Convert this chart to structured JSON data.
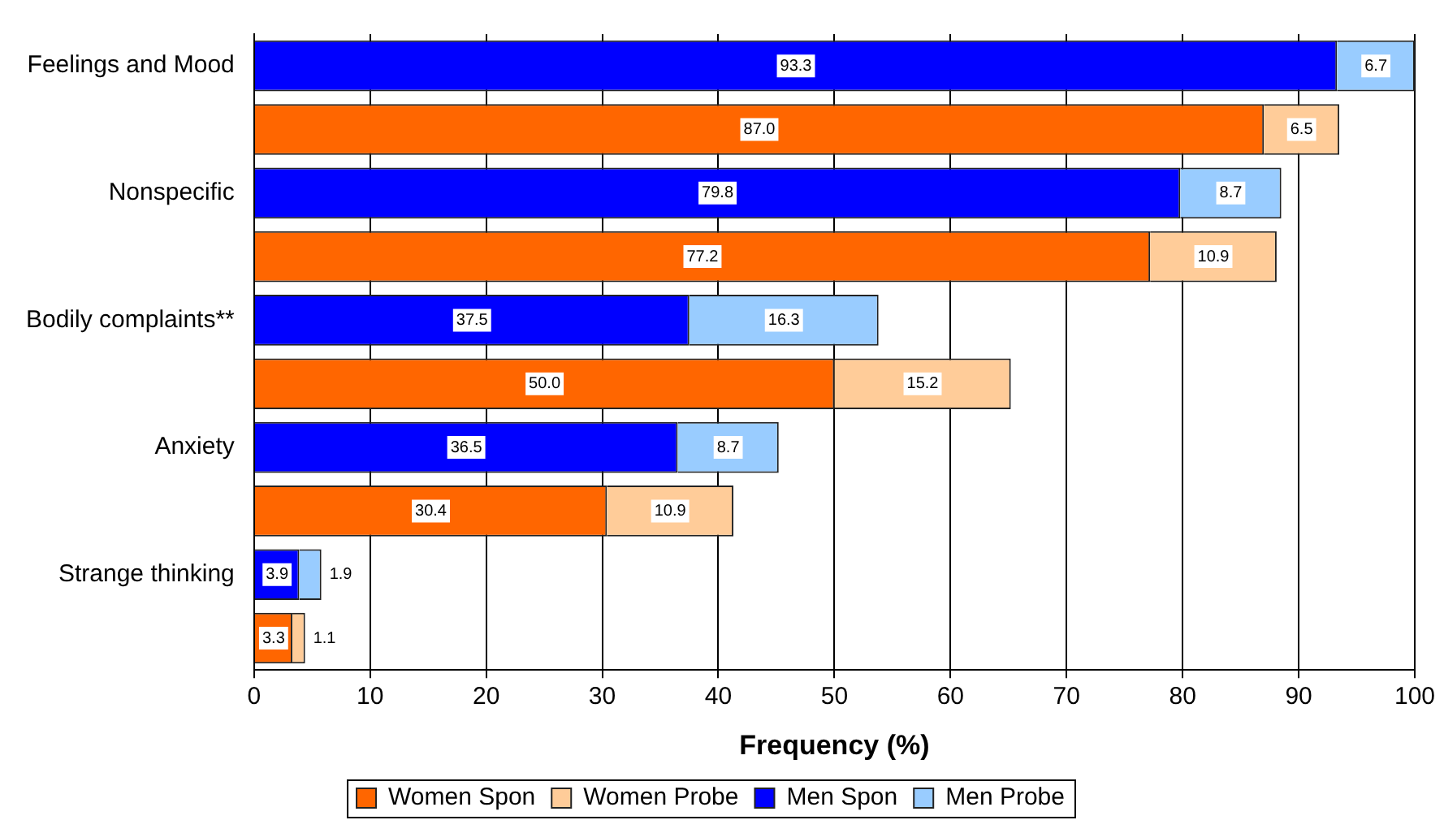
{
  "chart_data": {
    "type": "bar",
    "orientation": "horizontal",
    "stacked": true,
    "categories": [
      "Feelings and Mood",
      null,
      "Nonspecific",
      null,
      "Bodily complaints**",
      null,
      "Anxiety",
      null,
      "Strange thinking",
      null
    ],
    "series": [
      {
        "name": "Women Spon",
        "color": "#ff6600",
        "values": [
          null,
          87.0,
          null,
          77.2,
          null,
          50.0,
          null,
          30.4,
          null,
          3.3
        ],
        "value_labels": [
          null,
          "87.0",
          null,
          "77.2",
          null,
          "50.0",
          null,
          "30.4",
          null,
          "3.3"
        ]
      },
      {
        "name": "Women Probe",
        "color": "#ffcc99",
        "values": [
          null,
          6.5,
          null,
          10.9,
          null,
          15.2,
          null,
          10.9,
          null,
          1.1
        ],
        "value_labels": [
          null,
          "6.5",
          null,
          "10.9",
          null,
          "15.2",
          null,
          "10.9",
          null,
          "1.1"
        ]
      },
      {
        "name": "Men Spon",
        "color": "#0000ff",
        "values": [
          93.3,
          null,
          79.8,
          null,
          37.5,
          null,
          36.5,
          null,
          3.9,
          null
        ],
        "value_labels": [
          "93.3",
          null,
          "79.8",
          null,
          "37.5",
          null,
          "36.5",
          null,
          "3.9",
          null
        ]
      },
      {
        "name": "Men Probe",
        "color": "#99ccff",
        "values": [
          6.7,
          null,
          8.7,
          null,
          16.3,
          null,
          8.7,
          null,
          1.9,
          null
        ],
        "value_labels": [
          "6.7",
          null,
          "8.7",
          null,
          "16.3",
          null,
          "8.7",
          null,
          "1.9",
          null
        ]
      }
    ],
    "xlabel": "Frequency (%)",
    "xlim": [
      0,
      100
    ],
    "xticks": [
      0,
      10,
      20,
      30,
      40,
      50,
      60,
      70,
      80,
      90,
      100
    ],
    "grid": "x",
    "legend": "bottom"
  }
}
